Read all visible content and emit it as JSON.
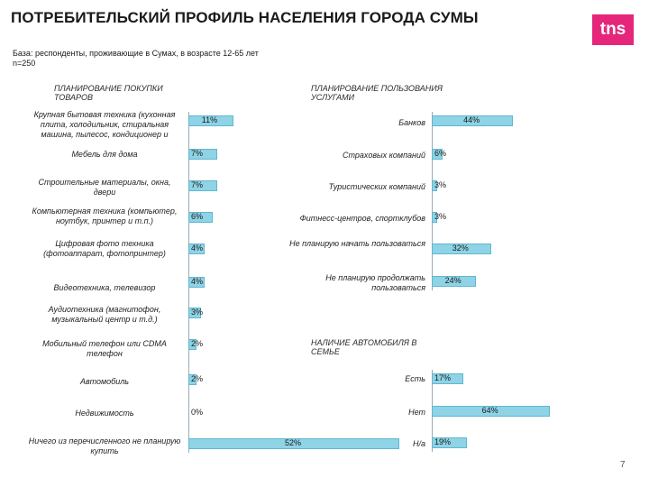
{
  "title": "ПОТРЕБИТЕЛЬСКИЙ ПРОФИЛЬ НАСЕЛЕНИЯ ГОРОДА СУМЫ",
  "logo": "tns",
  "base_line1": "База: респонденты, проживающие в Сумах, в возрасте 12-65 лет",
  "base_line2": "n=250",
  "page_number": "7",
  "colors": {
    "bar": "#8fd3e6",
    "bar_border": "#5fb8cf",
    "logo": "#e6267a"
  },
  "chart_data": [
    {
      "type": "bar",
      "title": "ПЛАНИРОВАНИЕ ПОКУПКИ ТОВАРОВ",
      "categories": [
        "Крупная бытовая техника (кухонная плита, холодильник, стиральная машина, пылесос, кондиционер и",
        "Мебель для дома",
        "Строительные материалы, окна, двери",
        "Компьютерная техника (компьютер, ноутбук, принтер и т.п.)",
        "Цифровая фото техника (фотоаппарат, фотопринтер)",
        "Видеотехника, телевизор",
        "Аудиотехника (магнитофон, музыкальный центр и т.д.)",
        "Мобильный телефон или CDMA телефон",
        "Автомобиль",
        "Недвижимость",
        "Ничего из перечисленного не планирую купить"
      ],
      "values": [
        11,
        7,
        7,
        6,
        4,
        4,
        3,
        2,
        2,
        0,
        52
      ],
      "value_labels": [
        "11%",
        "7%",
        "7%",
        "6%",
        "4%",
        "4%",
        "3%",
        "2%",
        "2%",
        "0%",
        "52%"
      ]
    },
    {
      "type": "bar",
      "title": "ПЛАНИРОВАНИЕ ПОЛЬЗОВАНИЯ УСЛУГАМИ",
      "categories": [
        "Банков",
        "Страховых компаний",
        "Туристических компаний",
        "Фитнесс-центров, спортклубов",
        "Не планирую начать пользоваться",
        "Не планирую продолжать пользоваться"
      ],
      "values": [
        44,
        6,
        3,
        3,
        32,
        24
      ],
      "value_labels": [
        "44%",
        "6%",
        "3%",
        "3%",
        "32%",
        "24%"
      ]
    },
    {
      "type": "bar",
      "title": "НАЛИЧИЕ АВТОМОБИЛЯ В СЕМЬЕ",
      "categories": [
        "Есть",
        "Нет",
        "Н/а"
      ],
      "values": [
        17,
        64,
        19
      ],
      "value_labels": [
        "17%",
        "64%",
        "19%"
      ]
    }
  ]
}
